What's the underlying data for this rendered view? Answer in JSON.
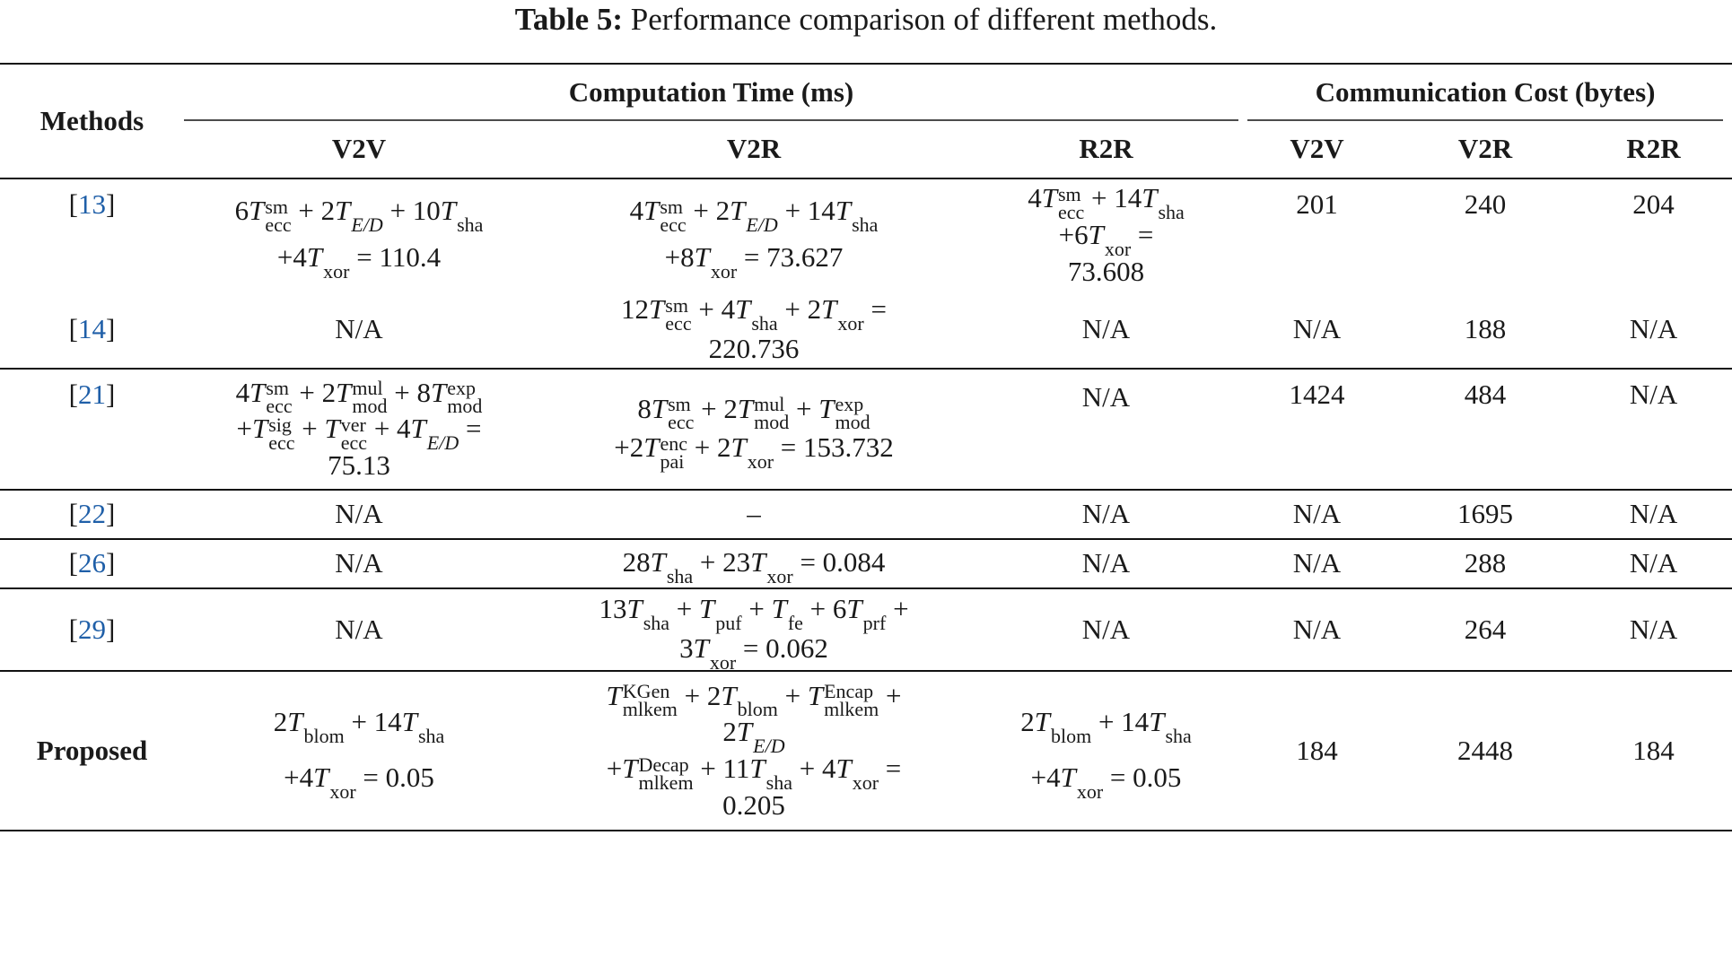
{
  "caption": {
    "label": "Table 5:",
    "text": "Performance comparison of different methods."
  },
  "header": {
    "methods": "Methods",
    "computation_time": "Computation Time (ms)",
    "communication_cost": "Communication Cost (bytes)",
    "sub": [
      "V2V",
      "V2R",
      "R2R",
      "V2V",
      "V2R",
      "R2R"
    ]
  },
  "rows": [
    {
      "method": "13",
      "comp": {
        "v2v": [
          "6T_ecc^sm + 2T_E/D + 10T_sha",
          "+4T_xor = 110.4"
        ],
        "v2r": [
          "4T_ecc^sm + 2T_E/D + 14T_sha",
          "+8T_xor = 73.627"
        ],
        "r2r": [
          "4T_ecc^sm + 14T_sha",
          "+6T_xor =",
          "73.608"
        ]
      },
      "comm": {
        "v2v": "201",
        "v2r": "240",
        "r2r": "204"
      }
    },
    {
      "method": "14",
      "comp": {
        "v2v": [
          "N/A"
        ],
        "v2r": [
          "12T_ecc^sm + 4T_sha + 2T_xor =",
          "220.736"
        ],
        "r2r": [
          "N/A"
        ]
      },
      "comm": {
        "v2v": "N/A",
        "v2r": "188",
        "r2r": "N/A"
      }
    },
    {
      "method": "21",
      "comp": {
        "v2v": [
          "4T_ecc^sm + 2T_mod^mul + 8T_mod^exp",
          "+T_ecc^sig + T_ecc^ver + 4T_E/D =",
          "75.13"
        ],
        "v2r": [
          "8T_ecc^sm + 2T_mod^mul + T_mod^exp",
          "+2T_pai^enc + 2T_xor = 153.732"
        ],
        "r2r": [
          "N/A"
        ]
      },
      "comm": {
        "v2v": "1424",
        "v2r": "484",
        "r2r": "N/A"
      }
    },
    {
      "method": "22",
      "comp": {
        "v2v": [
          "N/A"
        ],
        "v2r": [
          "–"
        ],
        "r2r": [
          "N/A"
        ]
      },
      "comm": {
        "v2v": "N/A",
        "v2r": "1695",
        "r2r": "N/A"
      }
    },
    {
      "method": "26",
      "comp": {
        "v2v": [
          "N/A"
        ],
        "v2r": [
          "28T_sha + 23T_xor = 0.084"
        ],
        "r2r": [
          "N/A"
        ]
      },
      "comm": {
        "v2v": "N/A",
        "v2r": "288",
        "r2r": "N/A"
      }
    },
    {
      "method": "29",
      "comp": {
        "v2v": [
          "N/A"
        ],
        "v2r": [
          "13T_sha + T_puf + T_fe + 6T_prf +",
          "3T_xor = 0.062"
        ],
        "r2r": [
          "N/A"
        ]
      },
      "comm": {
        "v2v": "N/A",
        "v2r": "264",
        "r2r": "N/A"
      }
    },
    {
      "method": "Proposed",
      "comp": {
        "v2v": [
          "2T_blom + 14T_sha",
          "+4T_xor = 0.05"
        ],
        "v2r": [
          "T_mlkem^KGen + 2T_blom + T_mlkem^Encap +",
          "2T_E/D",
          "+T_mlkem^Decap + 11T_sha + 4T_xor =",
          "0.205"
        ],
        "r2r": [
          "2T_blom + 14T_sha",
          "+4T_xor = 0.05"
        ]
      },
      "comm": {
        "v2v": "184",
        "v2r": "2448",
        "r2r": "184"
      }
    }
  ]
}
